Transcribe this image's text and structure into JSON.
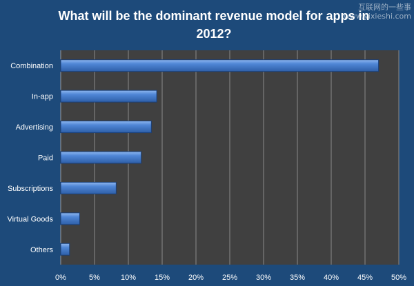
{
  "watermark": {
    "line1": "互联网的一些事",
    "line2": "www.yixieshi.com"
  },
  "chart_data": {
    "type": "bar",
    "orientation": "horizontal",
    "title": "What will be the dominant revenue model for apps in 2012?",
    "categories": [
      "Combination",
      "In-app",
      "Advertising",
      "Paid",
      "Subscriptions",
      "Virtual Goods",
      "Others"
    ],
    "values": [
      47,
      14.2,
      13.4,
      11.9,
      8.2,
      2.8,
      1.3
    ],
    "xlim": [
      0,
      50
    ],
    "xticks": [
      0,
      5,
      10,
      15,
      20,
      25,
      30,
      35,
      40,
      45,
      50
    ],
    "tick_suffix": "%",
    "grid": true,
    "colors": {
      "bar": "#4f86d6",
      "bar_light": "#8fb8f0",
      "bar_dark": "#2e5fa8",
      "plot_bg": "#404040",
      "page_bg": "#1d4a7a",
      "grid": "#8a8a8a"
    }
  }
}
